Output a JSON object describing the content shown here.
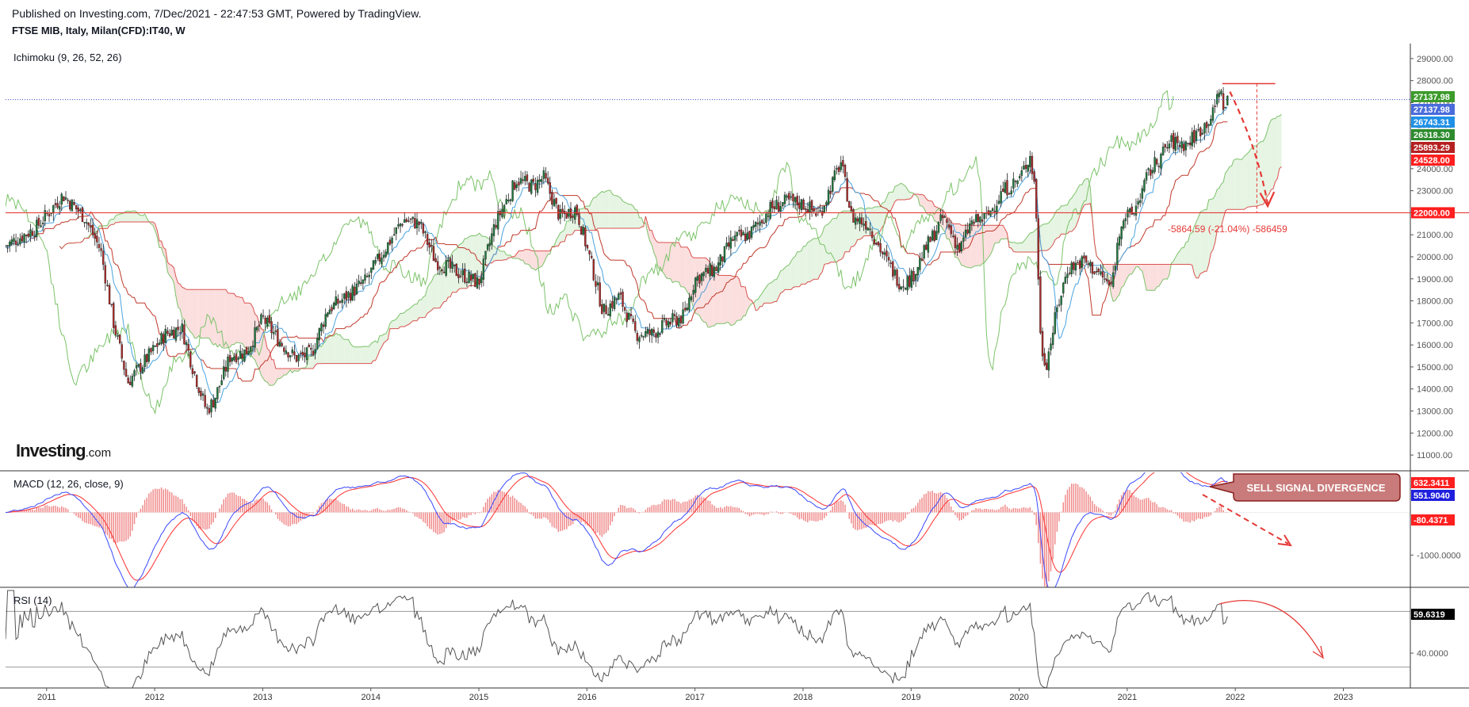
{
  "header": {
    "published": "Published on Investing.com, 7/Dec/2021 - 22:47:53 GMT, Powered by TradingView.",
    "symbol": "FTSE MIB, Italy, Milan(CFD):IT40, W"
  },
  "logo": {
    "main": "Investing",
    "suffix": ".com"
  },
  "colors": {
    "candle_up": "#1e7a3c",
    "candle_down": "#b02a2a",
    "tenkan": "#4aa3df",
    "kijun": "#c0392b",
    "span_a": "#7cc36a",
    "span_b": "#d9534f",
    "chikou": "#7cc36a",
    "cloud_bull": "#e6f4e3",
    "cloud_bear": "#fbdede",
    "macd": "#3a49ff",
    "signal": "#ff3030",
    "hist": "#f08a8a",
    "rsi": "#555555",
    "annot": "#e53935"
  },
  "chart_data": [
    {
      "type": "candlestick",
      "title": "FTSE MIB, Italy, Milan(CFD):IT40, W",
      "indicator": "Ichimoku (9, 26, 52, 26)",
      "ylim": [
        10500,
        29500
      ],
      "xlim": [
        2010.62,
        2023.62
      ],
      "price_ticks": [
        "29000.00",
        "28000.00",
        "27000.00",
        "26000.00",
        "25000.00",
        "24000.00",
        "23000.00",
        "22000.00",
        "21000.00",
        "20000.00",
        "19000.00",
        "18000.00",
        "17000.00",
        "16000.00",
        "15000.00",
        "14000.00",
        "13000.00",
        "12000.00",
        "11000.00"
      ],
      "x_ticks": [
        "2011",
        "2012",
        "2013",
        "2014",
        "2015",
        "2016",
        "2017",
        "2018",
        "2019",
        "2020",
        "2021",
        "2022",
        "2023"
      ],
      "close_path": [
        [
          2010.62,
          20500
        ],
        [
          2010.9,
          21300
        ],
        [
          2011.15,
          22800
        ],
        [
          2011.35,
          21800
        ],
        [
          2011.5,
          20300
        ],
        [
          2011.62,
          17000
        ],
        [
          2011.75,
          14300
        ],
        [
          2011.9,
          15200
        ],
        [
          2012.1,
          16500
        ],
        [
          2012.25,
          16800
        ],
        [
          2012.35,
          15000
        ],
        [
          2012.48,
          13000
        ],
        [
          2012.55,
          13500
        ],
        [
          2012.7,
          15500
        ],
        [
          2012.85,
          15700
        ],
        [
          2013.0,
          17200
        ],
        [
          2013.15,
          16200
        ],
        [
          2013.3,
          15400
        ],
        [
          2013.45,
          15600
        ],
        [
          2013.6,
          17600
        ],
        [
          2013.75,
          18100
        ],
        [
          2013.95,
          18900
        ],
        [
          2014.15,
          20500
        ],
        [
          2014.3,
          21700
        ],
        [
          2014.45,
          21500
        ],
        [
          2014.6,
          19800
        ],
        [
          2014.8,
          19300
        ],
        [
          2015.0,
          18800
        ],
        [
          2015.15,
          21500
        ],
        [
          2015.35,
          23500
        ],
        [
          2015.5,
          23200
        ],
        [
          2015.6,
          23600
        ],
        [
          2015.75,
          21800
        ],
        [
          2015.9,
          22200
        ],
        [
          2016.05,
          19500
        ],
        [
          2016.15,
          17500
        ],
        [
          2016.3,
          18200
        ],
        [
          2016.45,
          16500
        ],
        [
          2016.6,
          16500
        ],
        [
          2016.75,
          17000
        ],
        [
          2016.9,
          17300
        ],
        [
          2017.0,
          19000
        ],
        [
          2017.2,
          19500
        ],
        [
          2017.35,
          20800
        ],
        [
          2017.5,
          21000
        ],
        [
          2017.7,
          22200
        ],
        [
          2017.85,
          22500
        ],
        [
          2018.0,
          22400
        ],
        [
          2018.15,
          21900
        ],
        [
          2018.3,
          23700
        ],
        [
          2018.35,
          24300
        ],
        [
          2018.45,
          21800
        ],
        [
          2018.6,
          21500
        ],
        [
          2018.75,
          20000
        ],
        [
          2018.9,
          18800
        ],
        [
          2019.0,
          19000
        ],
        [
          2019.15,
          20500
        ],
        [
          2019.3,
          21800
        ],
        [
          2019.45,
          20300
        ],
        [
          2019.55,
          21500
        ],
        [
          2019.7,
          21800
        ],
        [
          2019.85,
          23000
        ],
        [
          2020.0,
          23500
        ],
        [
          2020.1,
          24600
        ],
        [
          2020.15,
          23000
        ],
        [
          2020.2,
          16000
        ],
        [
          2020.25,
          15100
        ],
        [
          2020.35,
          17600
        ],
        [
          2020.45,
          19500
        ],
        [
          2020.6,
          19800
        ],
        [
          2020.75,
          19200
        ],
        [
          2020.85,
          18600
        ],
        [
          2020.95,
          21800
        ],
        [
          2021.05,
          21900
        ],
        [
          2021.2,
          23800
        ],
        [
          2021.4,
          25200
        ],
        [
          2021.55,
          25100
        ],
        [
          2021.7,
          25900
        ],
        [
          2021.8,
          26500
        ],
        [
          2021.85,
          27700
        ],
        [
          2021.9,
          26700
        ],
        [
          2021.93,
          27138
        ]
      ],
      "annotations": [
        {
          "text": "-5864.59 (-21.04%) -586459",
          "kind": "measure",
          "from": 27864,
          "to": 22000
        },
        {
          "text": "22000.00",
          "kind": "horizontal-level",
          "price": 22000
        }
      ],
      "last_values": [
        {
          "label": "27137.98",
          "color": "#3c9b2a"
        },
        {
          "label": "27137.98",
          "color": "#4a6cdb"
        },
        {
          "label": "26743.31",
          "color": "#1f90e6"
        },
        {
          "label": "26318.30",
          "color": "#2e8b2e"
        },
        {
          "label": "25893.29",
          "color": "#b52020"
        },
        {
          "label": "24528.00",
          "color": "#ff1f1f"
        }
      ]
    },
    {
      "type": "line",
      "title": "MACD (12, 26, close, 9)",
      "series_values": {
        "macd": 632.3411,
        "signal": 551.904,
        "histogram": -80.4371
      },
      "ticks": [
        "-1000.0000"
      ],
      "last_values": [
        {
          "label": "632.3411",
          "color": "#ff1f1f"
        },
        {
          "label": "551.9040",
          "color": "#1f1fdd"
        },
        {
          "label": "-80.4371",
          "color": "#ff1f1f"
        }
      ],
      "callout": "SELL SIGNAL DIVERGENCE"
    },
    {
      "type": "line",
      "title": "RSI (14)",
      "bands": [
        70,
        30
      ],
      "ticks": [
        "40.0000"
      ],
      "last_value": {
        "label": "59.6319",
        "color": "#000000"
      }
    }
  ]
}
